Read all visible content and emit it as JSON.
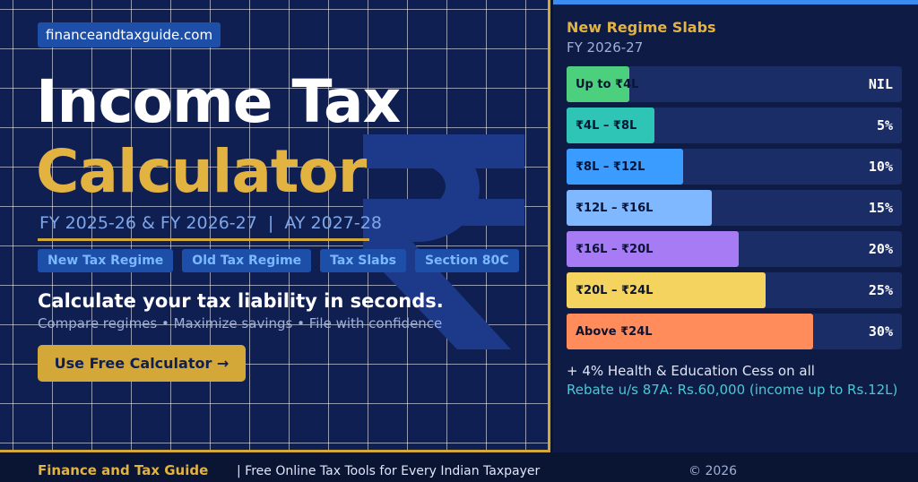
{
  "header": {
    "badge": "financeandtaxguide.com",
    "title_line1": "Income Tax",
    "title_line2": "Calculator",
    "fy_line": "FY 2025-26 & FY 2026-27  |  AY 2027-28"
  },
  "tags": [
    "New Tax Regime",
    "Old Tax Regime",
    "Tax Slabs",
    "Section 80C"
  ],
  "tagline": "Calculate your tax liability in seconds.",
  "subtext": "Compare regimes • Maximize savings • File with confidence",
  "button": "Use Free Calculator →",
  "slabs_panel": {
    "title": "New Regime Slabs",
    "subtitle": "FY 2026-27",
    "slabs": [
      {
        "label": "Up to ₹4L",
        "rate": "NIL",
        "color": "#4cd07d"
      },
      {
        "label": "₹4L – ₹8L",
        "rate": "5%",
        "color": "#2ec4b6"
      },
      {
        "label": "₹8L – ₹12L",
        "rate": "10%",
        "color": "#3b9cff"
      },
      {
        "label": "₹12L – ₹16L",
        "rate": "15%",
        "color": "#80b8ff"
      },
      {
        "label": "₹16L – ₹20L",
        "rate": "20%",
        "color": "#a77bf3"
      },
      {
        "label": "₹20L – ₹24L",
        "rate": "25%",
        "color": "#f4d35e"
      },
      {
        "label": "Above ₹24L",
        "rate": "30%",
        "color": "#ff8c5a"
      }
    ],
    "note_cess": "+ 4% Health & Education Cess on all",
    "note_rebate": "Rebate u/s 87A: Rs.60,000 (income up to Rs.12L)"
  },
  "footer": {
    "brand": "Finance and Tax Guide",
    "tagline": "| Free Online Tax Tools for Every Indian Taxpayer",
    "copyright": "© 2026"
  }
}
